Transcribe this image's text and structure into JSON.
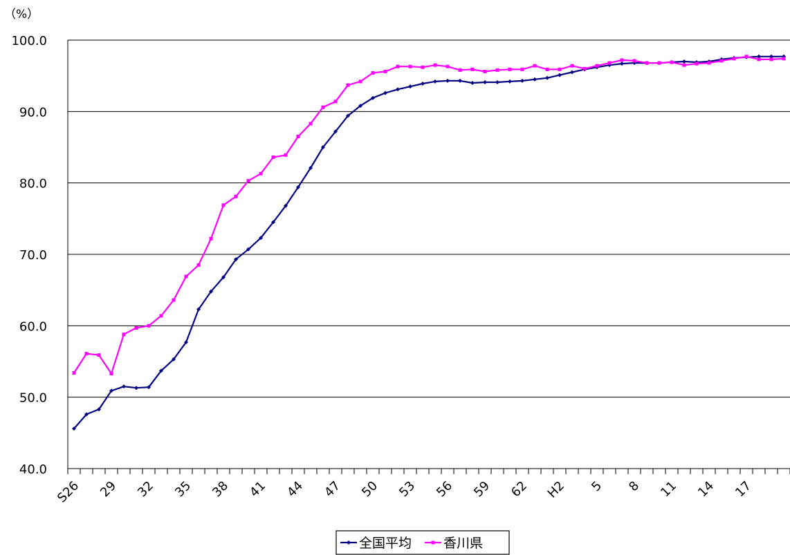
{
  "chart_data": {
    "type": "line",
    "y_unit": "（%）",
    "ylim": [
      40.0,
      100.0
    ],
    "y_ticks": [
      "100.0",
      "90.0",
      "80.0",
      "70.0",
      "60.0",
      "50.0",
      "40.0"
    ],
    "grid": true,
    "legend_position": "bottom-center",
    "x_tick_labels": [
      "S26",
      "29",
      "32",
      "35",
      "38",
      "41",
      "44",
      "47",
      "50",
      "53",
      "56",
      "59",
      "62",
      "H2",
      "5",
      "8",
      "11",
      "14",
      "17"
    ],
    "x": [
      "S26",
      "S27",
      "S28",
      "S29",
      "S30",
      "S31",
      "S32",
      "S33",
      "S34",
      "S35",
      "S36",
      "S37",
      "S38",
      "S39",
      "S40",
      "S41",
      "S42",
      "S43",
      "S44",
      "S45",
      "S46",
      "S47",
      "S48",
      "S49",
      "S50",
      "S51",
      "S52",
      "S53",
      "S54",
      "S55",
      "S56",
      "S57",
      "S58",
      "S59",
      "S60",
      "S61",
      "S62",
      "S63",
      "H1",
      "H2",
      "H3",
      "H4",
      "H5",
      "H6",
      "H7",
      "H8",
      "H9",
      "H10",
      "H11",
      "H12",
      "H13",
      "H14",
      "H15",
      "H16",
      "H17",
      "H18",
      "H19",
      "H20"
    ],
    "series": [
      {
        "name": "全国平均",
        "color": "#000080",
        "values": [
          45.6,
          47.6,
          48.3,
          50.9,
          51.5,
          51.3,
          51.4,
          53.7,
          55.3,
          57.7,
          62.3,
          64.8,
          66.8,
          69.3,
          70.7,
          72.3,
          74.5,
          76.8,
          79.4,
          82.1,
          85.0,
          87.2,
          89.4,
          90.8,
          91.9,
          92.6,
          93.1,
          93.5,
          93.9,
          94.2,
          94.3,
          94.3,
          94.0,
          94.1,
          94.1,
          94.2,
          94.3,
          94.5,
          94.7,
          95.1,
          95.5,
          95.9,
          96.2,
          96.5,
          96.7,
          96.8,
          96.8,
          96.8,
          96.9,
          97.0,
          96.9,
          97.0,
          97.3,
          97.5,
          97.6,
          97.7,
          97.7,
          97.7
        ]
      },
      {
        "name": "香川県",
        "color": "#ff00ff",
        "values": [
          53.4,
          56.1,
          55.9,
          53.3,
          58.8,
          59.7,
          60.0,
          61.4,
          63.6,
          66.9,
          68.5,
          72.2,
          76.9,
          78.1,
          80.3,
          81.3,
          83.6,
          83.9,
          86.5,
          88.3,
          90.6,
          91.4,
          93.7,
          94.2,
          95.4,
          95.6,
          96.3,
          96.3,
          96.2,
          96.5,
          96.3,
          95.8,
          95.9,
          95.6,
          95.8,
          95.9,
          95.9,
          96.4,
          95.9,
          95.9,
          96.4,
          96.0,
          96.4,
          96.8,
          97.2,
          97.1,
          96.8,
          96.8,
          96.9,
          96.5,
          96.7,
          96.8,
          97.1,
          97.4,
          97.7,
          97.3,
          97.3,
          97.4
        ]
      }
    ]
  }
}
